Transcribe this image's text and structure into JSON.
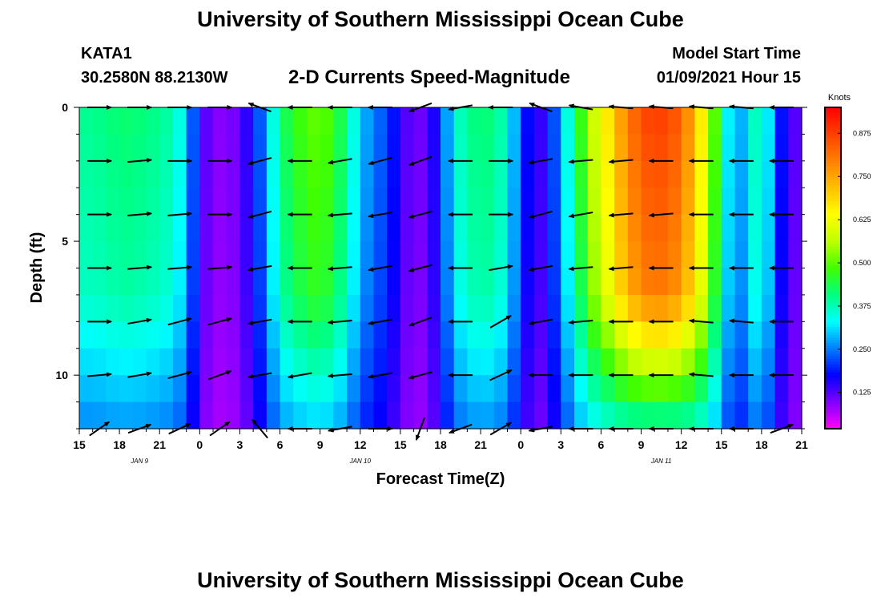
{
  "page": {
    "title": "University of Southern Mississippi Ocean Cube",
    "footer_title": "University of Southern Mississippi Ocean Cube",
    "station_id": "KATA1",
    "station_location": "30.2580N 88.2130W",
    "chart_title": "2-D Currents Speed-Magnitude",
    "model_start_label": "Model Start Time",
    "model_start_value": "01/09/2021 Hour 15"
  },
  "chart_data": {
    "type": "heatmap",
    "title": "2-D Currents Speed-Magnitude",
    "xlabel": "Forecast Time(Z)",
    "ylabel": "Depth (ft)",
    "x_range_hours": [
      0,
      54
    ],
    "x_ticks": [
      {
        "h": 0,
        "label": "15"
      },
      {
        "h": 3,
        "label": "18"
      },
      {
        "h": 6,
        "label": "21"
      },
      {
        "h": 9,
        "label": "0"
      },
      {
        "h": 12,
        "label": "3"
      },
      {
        "h": 15,
        "label": "6"
      },
      {
        "h": 18,
        "label": "9"
      },
      {
        "h": 21,
        "label": "12"
      },
      {
        "h": 24,
        "label": "15"
      },
      {
        "h": 27,
        "label": "18"
      },
      {
        "h": 30,
        "label": "21"
      },
      {
        "h": 33,
        "label": "0"
      },
      {
        "h": 36,
        "label": "3"
      },
      {
        "h": 39,
        "label": "6"
      },
      {
        "h": 42,
        "label": "9"
      },
      {
        "h": 45,
        "label": "12"
      },
      {
        "h": 48,
        "label": "15"
      },
      {
        "h": 51,
        "label": "18"
      },
      {
        "h": 54,
        "label": "21"
      }
    ],
    "date_labels": [
      {
        "h": 4.5,
        "label": "JAN  9"
      },
      {
        "h": 21,
        "label": "JAN 10"
      },
      {
        "h": 43.5,
        "label": "JAN 11"
      }
    ],
    "y_range_ft": [
      0,
      12
    ],
    "y_ticks": [
      {
        "v": 0,
        "label": "0"
      },
      {
        "v": 5,
        "label": "5"
      },
      {
        "v": 10,
        "label": "10"
      }
    ],
    "colorbar": {
      "label": "Knots",
      "min": 0.02,
      "max": 0.95,
      "ticks": [
        "0.125",
        "0.250",
        "0.375",
        "0.500",
        "0.625",
        "0.750",
        "0.875"
      ],
      "colors": [
        "#ff00ff",
        "#8000ff",
        "#0000ff",
        "#0080ff",
        "#00ffff",
        "#00ff80",
        "#40ff00",
        "#c0ff00",
        "#ffff00",
        "#ffc000",
        "#ff8000",
        "#ff4000",
        "#ff0000"
      ]
    },
    "depth_levels_ft": [
      0,
      1,
      2,
      3,
      4,
      5,
      6,
      7,
      8,
      9,
      10,
      11,
      12
    ],
    "time_hours": [
      0,
      1,
      2,
      3,
      4,
      5,
      6,
      7,
      8,
      9,
      10,
      11,
      12,
      13,
      14,
      15,
      16,
      17,
      18,
      19,
      20,
      21,
      22,
      23,
      24,
      25,
      26,
      27,
      28,
      29,
      30,
      31,
      32,
      33,
      34,
      35,
      36,
      37,
      38,
      39,
      40,
      41,
      42,
      43,
      44,
      45,
      46,
      47,
      48,
      49,
      50,
      51,
      52,
      53,
      54
    ],
    "surface_speed_kn": [
      0.4,
      0.4,
      0.41,
      0.42,
      0.42,
      0.41,
      0.4,
      0.38,
      0.32,
      0.14,
      0.1,
      0.09,
      0.12,
      0.18,
      0.28,
      0.42,
      0.46,
      0.5,
      0.51,
      0.48,
      0.4,
      0.3,
      0.25,
      0.22,
      0.15,
      0.1,
      0.12,
      0.2,
      0.35,
      0.4,
      0.42,
      0.41,
      0.36,
      0.22,
      0.14,
      0.15,
      0.3,
      0.4,
      0.55,
      0.62,
      0.72,
      0.8,
      0.86,
      0.88,
      0.87,
      0.83,
      0.73,
      0.6,
      0.4,
      0.25,
      0.32,
      0.42,
      0.22,
      0.15,
      0.1
    ],
    "arrows": {
      "depths_ft": [
        0,
        2,
        4,
        6,
        8,
        10,
        12
      ],
      "times_h": [
        1.5,
        4.5,
        7.5,
        10.5,
        13.5,
        16.5,
        19.5,
        22.5,
        25.5,
        28.5,
        31.5,
        34.5,
        37.5,
        40.5,
        43.5,
        46.5,
        49.5,
        52.5
      ],
      "direction_deg": [
        [
          0,
          0,
          0,
          0,
          160,
          180,
          180,
          180,
          200,
          190,
          180,
          160,
          170,
          175,
          175,
          175,
          175,
          180
        ],
        [
          0,
          5,
          0,
          0,
          195,
          180,
          190,
          195,
          200,
          180,
          0,
          190,
          185,
          185,
          180,
          180,
          180,
          180
        ],
        [
          0,
          5,
          5,
          0,
          195,
          180,
          185,
          190,
          195,
          180,
          0,
          195,
          190,
          185,
          185,
          180,
          180,
          180
        ],
        [
          0,
          5,
          5,
          5,
          190,
          180,
          185,
          190,
          195,
          180,
          10,
          190,
          185,
          185,
          180,
          180,
          180,
          180
        ],
        [
          0,
          10,
          15,
          15,
          190,
          180,
          185,
          190,
          200,
          180,
          30,
          190,
          185,
          180,
          180,
          175,
          175,
          180
        ],
        [
          5,
          10,
          15,
          20,
          190,
          190,
          185,
          190,
          195,
          180,
          25,
          180,
          180,
          180,
          180,
          175,
          180,
          180
        ],
        [
          35,
          20,
          25,
          35,
          130,
          180,
          190,
          0,
          250,
          200,
          30,
          190,
          180,
          180,
          180,
          180,
          180,
          20
        ]
      ]
    }
  }
}
